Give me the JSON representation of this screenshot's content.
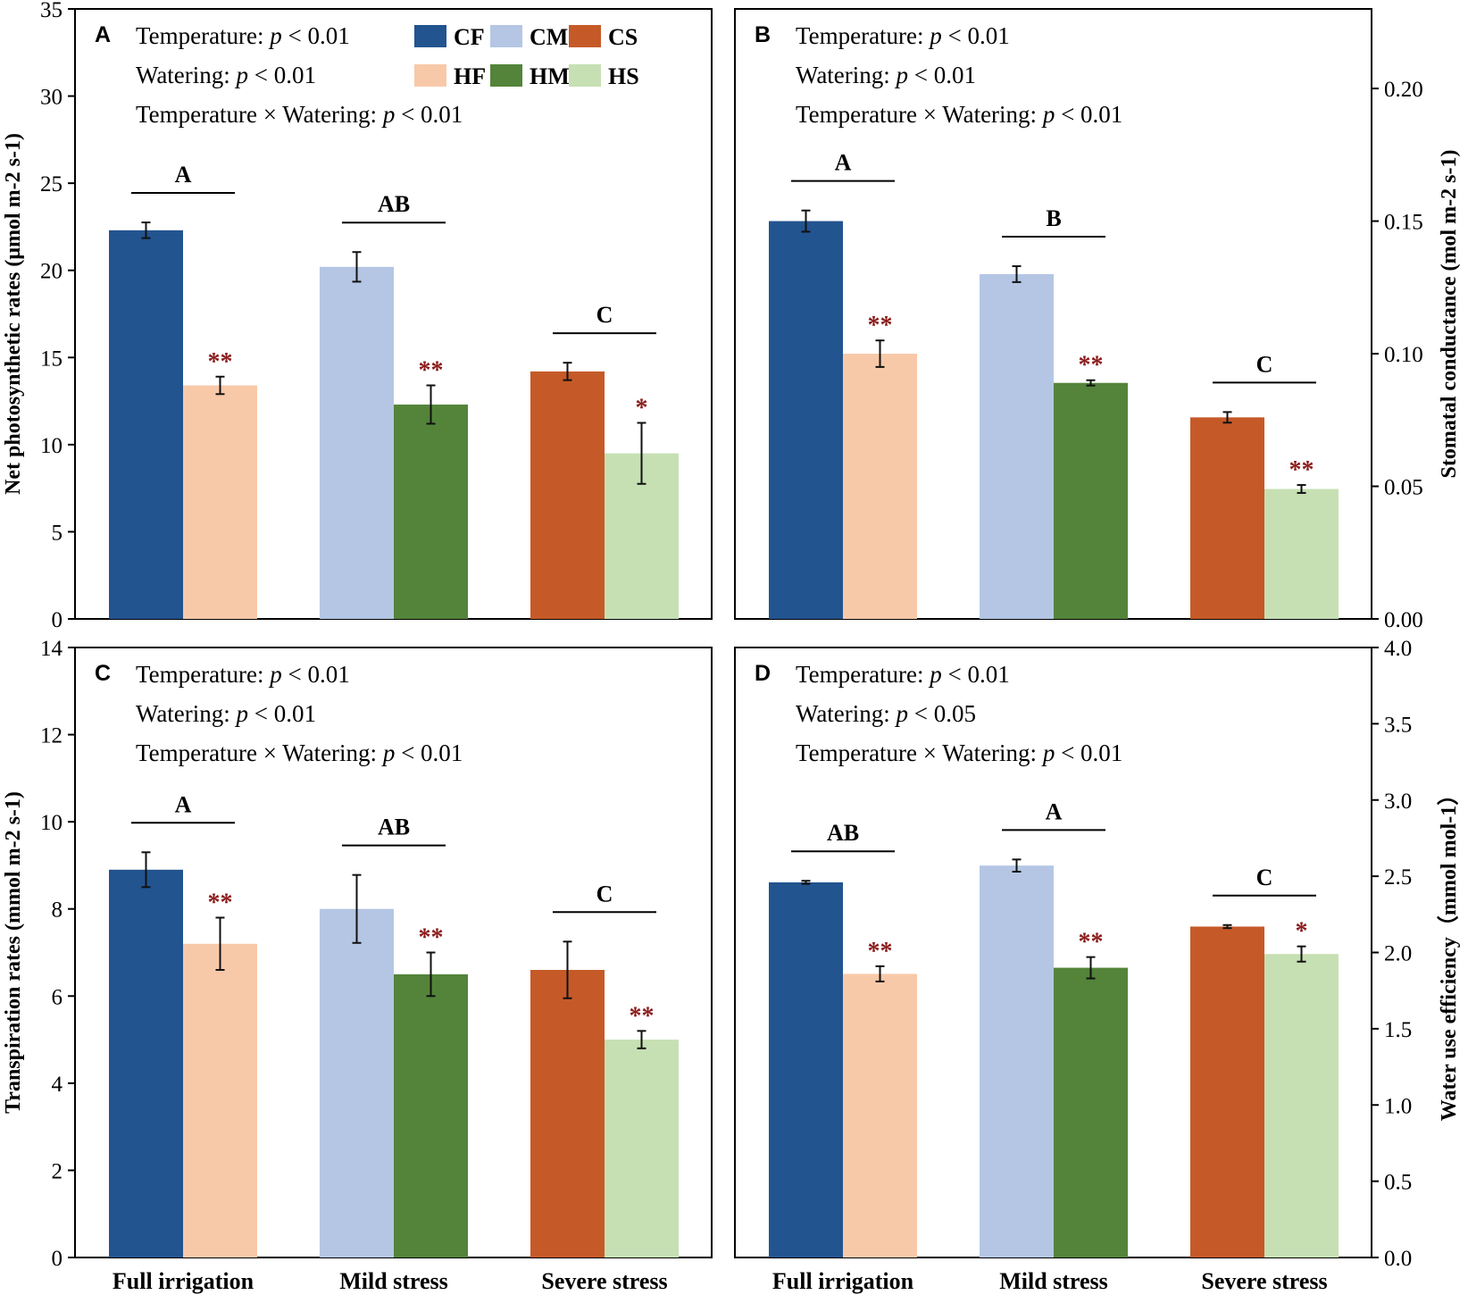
{
  "colors": {
    "CF": "#22548f",
    "CM": "#b4c6e4",
    "CS": "#c55a28",
    "HF": "#f8c9a9",
    "HM": "#53843a",
    "HS": "#c6e0b3",
    "star": "#8b1c1c"
  },
  "legend": {
    "items": [
      {
        "key": "CF",
        "label": "CF"
      },
      {
        "key": "CM",
        "label": "CM"
      },
      {
        "key": "CS",
        "label": "CS"
      },
      {
        "key": "HF",
        "label": "HF"
      },
      {
        "key": "HM",
        "label": "HM"
      },
      {
        "key": "HS",
        "label": "HS"
      }
    ]
  },
  "chart_data": [
    {
      "panel": "A",
      "type": "bar",
      "axis_side": "left",
      "ylabel": "Net photosynthetic rates (μmol m-2 s-1)",
      "ylim": [
        0,
        35
      ],
      "yticks": [
        0,
        5,
        10,
        15,
        20,
        25,
        30,
        35
      ],
      "categories": [
        "Full irrigation",
        "Mild stress",
        "Severe stress"
      ],
      "stats": [
        {
          "term": "Temperature: ",
          "p": "p",
          "rest": " < 0.01"
        },
        {
          "term": "Watering: ",
          "p": "p",
          "rest": " < 0.01"
        },
        {
          "term": "Temperature × Watering: ",
          "p": "p",
          "rest": " < 0.01"
        }
      ],
      "groups": [
        {
          "letter": "A",
          "control": {
            "key": "CF",
            "value": 22.3,
            "err": 0.45
          },
          "heat": {
            "key": "HF",
            "value": 13.4,
            "err": 0.5,
            "sig": "**"
          }
        },
        {
          "letter": "AB",
          "control": {
            "key": "CM",
            "value": 20.2,
            "err": 0.85
          },
          "heat": {
            "key": "HM",
            "value": 12.3,
            "err": 1.1,
            "sig": "**"
          }
        },
        {
          "letter": "C",
          "control": {
            "key": "CS",
            "value": 14.2,
            "err": 0.5
          },
          "heat": {
            "key": "HS",
            "value": 9.5,
            "err": 1.75,
            "sig": "*"
          }
        }
      ]
    },
    {
      "panel": "B",
      "type": "bar",
      "axis_side": "right",
      "ylabel": "Stomatal conductance (mol m-2 s-1)",
      "ylim": [
        0,
        0.23
      ],
      "yticks": [
        "0.00",
        "0.05",
        "0.10",
        "0.15",
        "0.20"
      ],
      "categories": [
        "Full irrigation",
        "Mild stress",
        "Severe stress"
      ],
      "stats": [
        {
          "term": "Temperature: ",
          "p": "p",
          "rest": " < 0.01"
        },
        {
          "term": "Watering: ",
          "p": "p",
          "rest": " < 0.01"
        },
        {
          "term": "Temperature × Watering: ",
          "p": "p",
          "rest": " < 0.01"
        }
      ],
      "groups": [
        {
          "letter": "A",
          "control": {
            "key": "CF",
            "value": 0.15,
            "err": 0.004
          },
          "heat": {
            "key": "HF",
            "value": 0.1,
            "err": 0.005,
            "sig": "**"
          }
        },
        {
          "letter": "B",
          "control": {
            "key": "CM",
            "value": 0.13,
            "err": 0.003
          },
          "heat": {
            "key": "HM",
            "value": 0.089,
            "err": 0.001,
            "sig": "**"
          }
        },
        {
          "letter": "C",
          "control": {
            "key": "CS",
            "value": 0.076,
            "err": 0.002
          },
          "heat": {
            "key": "HS",
            "value": 0.049,
            "err": 0.0015,
            "sig": "**"
          }
        }
      ]
    },
    {
      "panel": "C",
      "type": "bar",
      "axis_side": "left",
      "ylabel": "Transpiration rates (mmol m-2 s-1)",
      "ylim": [
        0,
        14
      ],
      "yticks": [
        0,
        2,
        4,
        6,
        8,
        10,
        12,
        14
      ],
      "categories": [
        "Full irrigation",
        "Mild stress",
        "Severe stress"
      ],
      "stats": [
        {
          "term": "Temperature: ",
          "p": "p",
          "rest": " < 0.01"
        },
        {
          "term": "Watering: ",
          "p": "p",
          "rest": " < 0.01"
        },
        {
          "term": "Temperature × Watering: ",
          "p": "p",
          "rest": " < 0.01"
        }
      ],
      "groups": [
        {
          "letter": "A",
          "control": {
            "key": "CF",
            "value": 8.9,
            "err": 0.4
          },
          "heat": {
            "key": "HF",
            "value": 7.2,
            "err": 0.6,
            "sig": "**"
          }
        },
        {
          "letter": "AB",
          "control": {
            "key": "CM",
            "value": 8.0,
            "err": 0.78
          },
          "heat": {
            "key": "HM",
            "value": 6.5,
            "err": 0.5,
            "sig": "**"
          }
        },
        {
          "letter": "C",
          "control": {
            "key": "CS",
            "value": 6.6,
            "err": 0.65
          },
          "heat": {
            "key": "HS",
            "value": 5.0,
            "err": 0.2,
            "sig": "**"
          }
        }
      ]
    },
    {
      "panel": "D",
      "type": "bar",
      "axis_side": "right",
      "ylabel": "Water use efficiency（mmol mol-1）",
      "ylim": [
        0,
        4
      ],
      "yticks": [
        "0.0",
        "0.5",
        "1.0",
        "1.5",
        "2.0",
        "2.5",
        "3.0",
        "3.5",
        "4.0"
      ],
      "categories": [
        "Full irrigation",
        "Mild stress",
        "Severe stress"
      ],
      "stats": [
        {
          "term": "Temperature: ",
          "p": "p",
          "rest": " < 0.01"
        },
        {
          "term": "Watering: ",
          "p": "p",
          "rest": " < 0.05"
        },
        {
          "term": "Temperature × Watering: ",
          "p": "p",
          "rest": " < 0.01"
        }
      ],
      "groups": [
        {
          "letter": "AB",
          "control": {
            "key": "CF",
            "value": 2.46,
            "err": 0.01
          },
          "heat": {
            "key": "HF",
            "value": 1.86,
            "err": 0.05,
            "sig": "**"
          }
        },
        {
          "letter": "A",
          "control": {
            "key": "CM",
            "value": 2.57,
            "err": 0.04
          },
          "heat": {
            "key": "HM",
            "value": 1.9,
            "err": 0.07,
            "sig": "**"
          }
        },
        {
          "letter": "C",
          "control": {
            "key": "CS",
            "value": 2.17,
            "err": 0.01
          },
          "heat": {
            "key": "HS",
            "value": 1.99,
            "err": 0.05,
            "sig": "*"
          }
        }
      ]
    }
  ]
}
